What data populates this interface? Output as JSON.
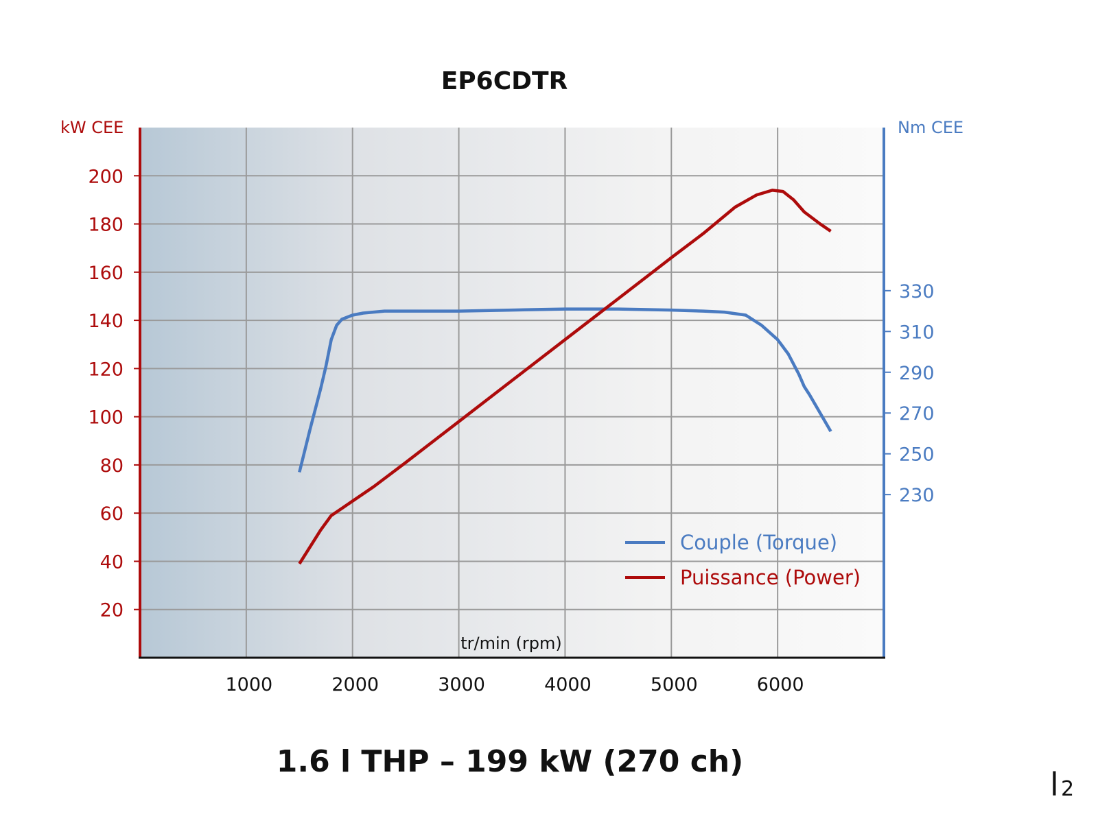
{
  "title": "EP6CDTR",
  "subtitle": "1.6 l THP – 199 kW (270 ch)",
  "corner_mark": "l",
  "corner_mark_sub": "2",
  "colors": {
    "power": "#ad0b0b",
    "torque": "#4a7bc1",
    "grid": "#9a9a9a",
    "axis": "#111111"
  },
  "chart_data": {
    "type": "line",
    "title": "EP6CDTR",
    "xlabel": "tr/min (rpm)",
    "ylabel_left": "kW CEE",
    "ylabel_right": "Nm CEE",
    "xlim": [
      0,
      7000
    ],
    "ylim_left": [
      0,
      220
    ],
    "ylim_right": [
      150,
      410
    ],
    "x_ticks": [
      "1000",
      "2000",
      "3000",
      "4000",
      "5000",
      "6000"
    ],
    "y_ticks_left": [
      "20",
      "40",
      "60",
      "80",
      "100",
      "120",
      "140",
      "160",
      "180",
      "200"
    ],
    "y_ticks_right": [
      "230",
      "250",
      "270",
      "290",
      "310",
      "330"
    ],
    "grid": true,
    "legend_position": "bottom-right",
    "series": [
      {
        "name": "Couple (Torque)",
        "axis": "right",
        "x": [
          1500,
          1600,
          1700,
          1750,
          1800,
          1850,
          1900,
          2000,
          2100,
          2300,
          2500,
          3000,
          3500,
          4000,
          4500,
          5000,
          5300,
          5500,
          5700,
          5850,
          6000,
          6100,
          6200,
          6250,
          6300,
          6400,
          6500
        ],
        "values": [
          241,
          262,
          282,
          293,
          306,
          313,
          316,
          318,
          319,
          320,
          320,
          320,
          320.5,
          321,
          321,
          320.5,
          320,
          319.5,
          318,
          313,
          306,
          299,
          289,
          283,
          279,
          270,
          261
        ]
      },
      {
        "name": "Puissance (Power)",
        "axis": "left",
        "x": [
          1500,
          1600,
          1700,
          1800,
          1900,
          2000,
          2200,
          2500,
          3000,
          3500,
          4000,
          4500,
          5000,
          5300,
          5600,
          5800,
          5950,
          6050,
          6150,
          6250,
          6400,
          6500
        ],
        "values": [
          39,
          46,
          53,
          59,
          62,
          65,
          71,
          81,
          98,
          115,
          132,
          149,
          166,
          176,
          187,
          192,
          194,
          193.5,
          190,
          185,
          180,
          177
        ]
      }
    ]
  }
}
